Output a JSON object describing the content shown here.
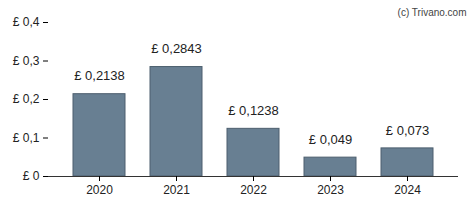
{
  "chart_data": {
    "type": "bar",
    "categories": [
      "2020",
      "2021",
      "2022",
      "2023",
      "2024"
    ],
    "values": [
      0.2138,
      0.2843,
      0.1238,
      0.049,
      0.073
    ],
    "value_labels": [
      "£ 0,2138",
      "£ 0,2843",
      "£ 0,1238",
      "£ 0,049",
      "£ 0,073"
    ],
    "color": "#687f92",
    "ylim": [
      0,
      0.4
    ],
    "yticks": [
      {
        "value": 0,
        "label": "£ 0"
      },
      {
        "value": 0.1,
        "label": "£ 0,1"
      },
      {
        "value": 0.2,
        "label": "£ 0,2"
      },
      {
        "value": 0.3,
        "label": "£ 0,3"
      },
      {
        "value": 0.4,
        "label": "£ 0,4"
      }
    ],
    "grid": false,
    "data_labels": true,
    "annotations": [
      "(c) Trivano.com"
    ]
  }
}
